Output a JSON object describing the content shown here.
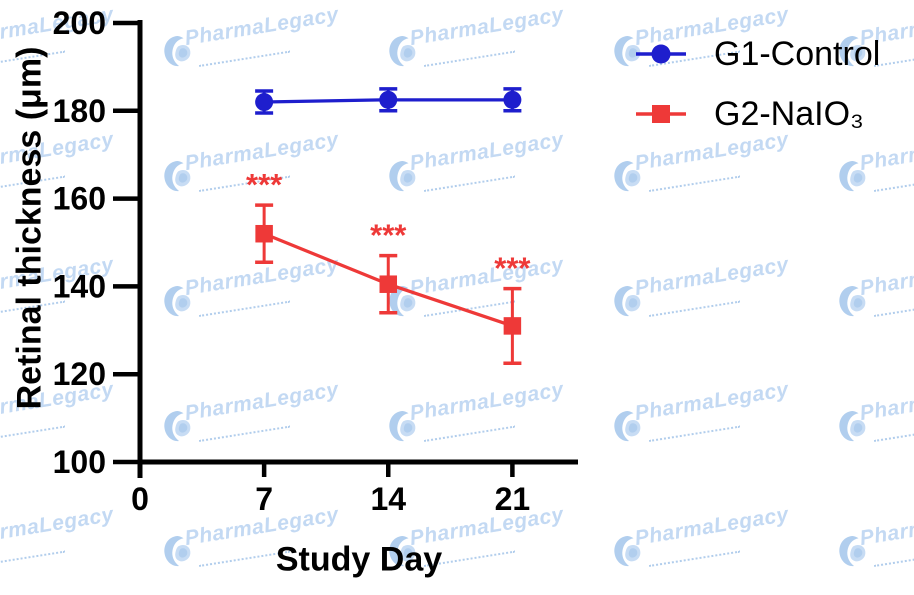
{
  "watermark": {
    "text": "PharmaLegacy",
    "text_color": "#c3d9f3",
    "logo_color": "#a9c9ec",
    "logo_color_light": "#c7dcf4"
  },
  "chart_data": {
    "type": "line",
    "xlabel": "Study Day",
    "ylabel": "Retinal thickness (μm)",
    "x": [
      7,
      14,
      21
    ],
    "xlim": [
      0,
      24.7
    ],
    "xticks": [
      0,
      7,
      14,
      21
    ],
    "ylim": [
      100,
      200
    ],
    "yticks": [
      100,
      120,
      140,
      160,
      180,
      200
    ],
    "grid": false,
    "legend_position": "top-right",
    "axis_color": "#000000",
    "series": [
      {
        "name": "G1-Control",
        "marker": "circle",
        "color": "#1e1ecd",
        "values": [
          182,
          182.5,
          182.5
        ],
        "errors": [
          2.5,
          2.5,
          2.5
        ]
      },
      {
        "name": "G2-NaIO₃",
        "marker": "square",
        "color": "#ee3938",
        "values": [
          152,
          140.5,
          131
        ],
        "errors": [
          6.5,
          6.5,
          8.5
        ]
      }
    ],
    "significance": {
      "series_index": 1,
      "labels": [
        "***",
        "***",
        "***"
      ],
      "color": "#ee3938"
    }
  }
}
